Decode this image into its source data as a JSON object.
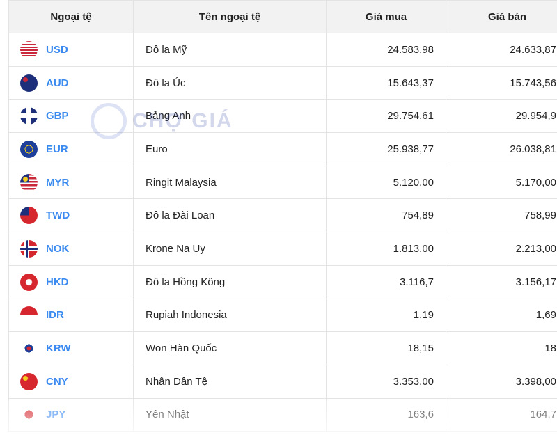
{
  "headers": [
    "Ngoại tệ",
    "Tên ngoại tệ",
    "Giá mua",
    "Giá bán"
  ],
  "watermark": "CHỢ GIÁ",
  "colors": {
    "green": "#4cc27a",
    "red": "#ef3b2f",
    "link": "#3b8af0"
  },
  "rows": [
    {
      "code": "USD",
      "name": "Đô la Mỹ",
      "buy": "24.583,98",
      "sell": "24.633,87",
      "buy_color": "green",
      "sell_color": "green",
      "flag": "us-flag-icon"
    },
    {
      "code": "AUD",
      "name": "Đô la Úc",
      "buy": "15.643,37",
      "sell": "15.743,56",
      "buy_color": "green",
      "sell_color": "green",
      "flag": "au-flag-icon"
    },
    {
      "code": "GBP",
      "name": "Bảng Anh",
      "buy": "29.754,61",
      "sell": "29.954,9",
      "buy_color": "green",
      "sell_color": "green",
      "flag": "gb-flag-icon"
    },
    {
      "code": "EUR",
      "name": "Euro",
      "buy": "25.938,77",
      "sell": "26.038,81",
      "buy_color": "green",
      "sell_color": "green",
      "flag": "eu-flag-icon"
    },
    {
      "code": "MYR",
      "name": "Ringit Malaysia",
      "buy": "5.120,00",
      "sell": "5.170,00",
      "buy_color": "red",
      "sell_color": "black",
      "flag": "my-flag-icon"
    },
    {
      "code": "TWD",
      "name": "Đô la Đài Loan",
      "buy": "754,89",
      "sell": "758,99",
      "buy_color": "green",
      "sell_color": "green",
      "flag": "tw-flag-icon"
    },
    {
      "code": "NOK",
      "name": "Krone Na Uy",
      "buy": "1.813,00",
      "sell": "2.213,00",
      "buy_color": "green",
      "sell_color": "green",
      "flag": "no-flag-icon"
    },
    {
      "code": "HKD",
      "name": "Đô la Hồng Kông",
      "buy": "3.116,7",
      "sell": "3.156,17",
      "buy_color": "green",
      "sell_color": "green",
      "flag": "hk-flag-icon"
    },
    {
      "code": "IDR",
      "name": "Rupiah Indonesia",
      "buy": "1,19",
      "sell": "1,69",
      "buy_color": "red",
      "sell_color": "red",
      "flag": "id-flag-icon"
    },
    {
      "code": "KRW",
      "name": "Won Hàn Quốc",
      "buy": "18,15",
      "sell": "18",
      "buy_color": "red",
      "sell_color": "green",
      "flag": "kr-flag-icon"
    },
    {
      "code": "CNY",
      "name": "Nhân Dân Tệ",
      "buy": "3.353,00",
      "sell": "3.398,00",
      "buy_color": "red",
      "sell_color": "red",
      "flag": "cn-flag-icon"
    },
    {
      "code": "JPY",
      "name": "Yên Nhật",
      "buy": "163,6",
      "sell": "164,7",
      "buy_color": "red",
      "sell_color": "red",
      "flag": "jp-flag-icon"
    }
  ]
}
